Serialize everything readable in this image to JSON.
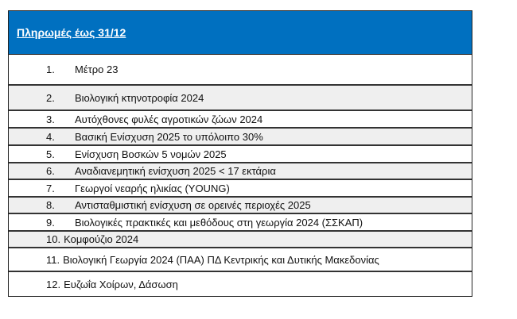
{
  "header": {
    "title": "Πληρωμές έως 31/12",
    "color": "#0070c0"
  },
  "items": [
    {
      "num": "1.",
      "label": "Μέτρο 23"
    },
    {
      "num": "2.",
      "label": "Βιολογική κτηνοτροφία 2024"
    },
    {
      "num": "3.",
      "label": "Αυτόχθονες φυλές αγροτικών ζώων 2024"
    },
    {
      "num": "4.",
      "label": "Βασική Ενίσχυση 2025 το υπόλοιπο 30%"
    },
    {
      "num": "5.",
      "label": "Ενίσχυση Βοσκών 5 νομών 2025"
    },
    {
      "num": "6.",
      "label": "Αναδιανεμητική ενίσχυση 2025 < 17 εκτάρια"
    },
    {
      "num": "7.",
      "label": "Γεωργοί νεαρής ηλικίας (YOUNG)"
    },
    {
      "num": "8.",
      "label": "Αντισταθμιστική ενίσχυση σε ορεινές περιοχές 2025"
    },
    {
      "num": "9.",
      "label": "Βιολογικές πρακτικές και μεθόδους στη γεωργία 2024 (ΣΣΚΑΠ)"
    },
    {
      "num": "10.",
      "label": "Κομφούζιο 2024"
    },
    {
      "num": "11.",
      "label": "Βιολογική Γεωργία 2024 (ΠΑΑ) ΠΔ Κεντρικής και Δυτικής Μακεδονίας"
    },
    {
      "num": "12.",
      "label": "Ευζωΐα Χοίρων, Δάσωση"
    }
  ]
}
